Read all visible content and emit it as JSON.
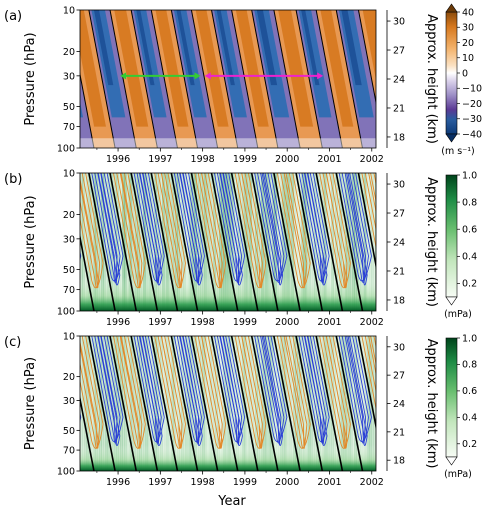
{
  "figure": {
    "xlabel": "Year",
    "colors": {
      "wind_easterly": "#2166ac",
      "wind_westerly": "#d6781e",
      "contour_blue": "#2a3fd6",
      "contour_orange": "#e3892a",
      "arrow_green": "#33cc33",
      "arrow_magenta": "#ee22cc",
      "zero_line": "#000000"
    }
  },
  "chart_data": [
    {
      "panel_label": "(a)",
      "type": "heatmap",
      "xlabel": "",
      "ylabel": "Pressure  (hPa)",
      "ylabel_right": "Approx. height  (km)",
      "x_ticks": [
        "1996",
        "1997",
        "1998",
        "1999",
        "2000",
        "2001",
        "2002"
      ],
      "xlim": [
        1995.6,
        2002.6
      ],
      "y_ticks": [
        10,
        20,
        30,
        50,
        70,
        100
      ],
      "ylim": [
        100,
        10
      ],
      "y_scale": "log",
      "height_ticks_km": [
        30,
        27,
        24,
        21,
        18
      ],
      "colorbar": {
        "ticks": [
          40,
          30,
          20,
          10,
          0,
          -10,
          -20,
          -30,
          -40
        ],
        "unit": "(m s⁻¹)",
        "extend": "both",
        "colormap": "PuOr-to-blue (diverging)"
      },
      "qbo_phase_onsets_30hPa": [
        1996.1,
        1997.1,
        1998.05,
        1999.0,
        1999.95,
        2001.0,
        2001.95
      ],
      "arrows": [
        {
          "color": "green",
          "pressure_hPa": 30,
          "from_year": 1996.55,
          "to_year": 1998.45,
          "direction": "both"
        },
        {
          "color": "magenta",
          "pressure_hPa": 30,
          "from_year": 1998.55,
          "to_year": 2001.35,
          "direction": "both"
        }
      ],
      "contours": "zero wind line (black)"
    },
    {
      "panel_label": "(b)",
      "type": "heatmap",
      "xlabel": "",
      "ylabel": "Pressure  (hPa)",
      "ylabel_right": "Approx. height  (km)",
      "x_ticks": [
        "1996",
        "1997",
        "1998",
        "1999",
        "2000",
        "2001",
        "2002"
      ],
      "xlim": [
        1995.6,
        2002.6
      ],
      "y_ticks": [
        10,
        20,
        30,
        50,
        70,
        100
      ],
      "ylim": [
        100,
        10
      ],
      "y_scale": "log",
      "height_ticks_km": [
        30,
        27,
        24,
        21,
        18
      ],
      "colorbar": {
        "ticks": [
          1.0,
          0.8,
          0.6,
          0.4,
          0.2
        ],
        "unit": "(mPa)",
        "extend": "min",
        "colormap": "Greens"
      },
      "contours": "blue = easterly wind, orange = westerly wind, black = zero wind"
    },
    {
      "panel_label": "(c)",
      "type": "heatmap",
      "xlabel": "Year",
      "ylabel": "Pressure  (hPa)",
      "ylabel_right": "Approx. height  (km)",
      "x_ticks": [
        "1996",
        "1997",
        "1998",
        "1999",
        "2000",
        "2001",
        "2002"
      ],
      "xlim": [
        1995.6,
        2002.6
      ],
      "y_ticks": [
        10,
        20,
        30,
        50,
        70,
        100
      ],
      "ylim": [
        100,
        10
      ],
      "y_scale": "log",
      "height_ticks_km": [
        30,
        27,
        24,
        21,
        18
      ],
      "colorbar": {
        "ticks": [
          1.0,
          0.8,
          0.6,
          0.4,
          0.2
        ],
        "unit": "(mPa)",
        "extend": "min",
        "colormap": "Greens"
      },
      "contours": "blue = easterly wind, orange = westerly wind, black = zero wind"
    }
  ]
}
